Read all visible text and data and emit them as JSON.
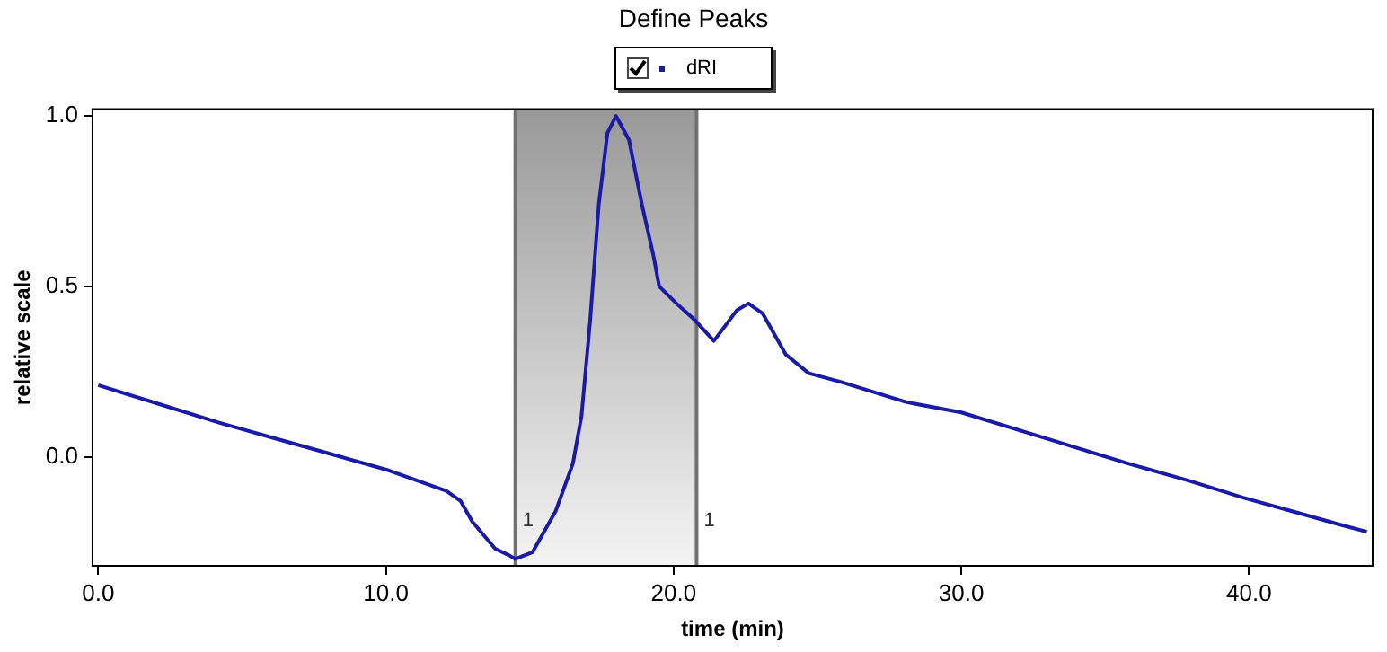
{
  "chart_data": {
    "type": "line",
    "title": "Define Peaks",
    "xlabel": "time (min)",
    "ylabel": "relative scale",
    "x": [
      0,
      2.1,
      4.2,
      6.1,
      8.0,
      10.1,
      12.1,
      12.6,
      13.0,
      13.8,
      14.3,
      14.5,
      15.1,
      15.9,
      16.5,
      16.8,
      17.1,
      17.4,
      17.7,
      18.0,
      18.45,
      18.9,
      19.3,
      19.5,
      20.1,
      20.75,
      21.4,
      22.2,
      22.6,
      23.1,
      23.9,
      24.7,
      25.8,
      28.1,
      30.0,
      33.1,
      35.8,
      37.9,
      39.8,
      41.5,
      43.2,
      44.1
    ],
    "series": [
      {
        "name": "dRI",
        "color": "#1a1aa8",
        "values": [
          0.21,
          0.155,
          0.1,
          0.055,
          0.01,
          -0.04,
          -0.1,
          -0.13,
          -0.19,
          -0.27,
          -0.29,
          -0.3,
          -0.28,
          -0.16,
          -0.02,
          0.12,
          0.4,
          0.74,
          0.95,
          1.0,
          0.93,
          0.74,
          0.59,
          0.5,
          0.45,
          0.4,
          0.34,
          0.43,
          0.45,
          0.42,
          0.3,
          0.245,
          0.22,
          0.16,
          0.13,
          0.05,
          -0.02,
          -0.07,
          -0.12,
          -0.16,
          -0.2,
          -0.22
        ]
      }
    ],
    "xlim": [
      -0.2,
      44.3
    ],
    "ylim": [
      -0.32,
      1.02
    ],
    "xticks": [
      {
        "value": 0,
        "label": "0.0"
      },
      {
        "value": 10,
        "label": "10.0"
      },
      {
        "value": 20,
        "label": "20.0"
      },
      {
        "value": 30,
        "label": "30.0"
      },
      {
        "value": 40,
        "label": "40.0"
      }
    ],
    "yticks": [
      {
        "value": 0,
        "label": "0.0"
      },
      {
        "value": 0.5,
        "label": "0.5"
      },
      {
        "value": 1,
        "label": "1.0"
      }
    ],
    "bands": [
      {
        "axis": "x",
        "from": 14.5,
        "to": 20.8,
        "label": "1",
        "color": "#999999"
      }
    ],
    "ref_lines": [
      {
        "axis": "x",
        "value": 14.5,
        "color": "#707070"
      },
      {
        "axis": "x",
        "value": 20.8,
        "color": "#707070"
      }
    ],
    "grid": false,
    "legend": "top",
    "marker": "none",
    "line_style": "solid"
  }
}
